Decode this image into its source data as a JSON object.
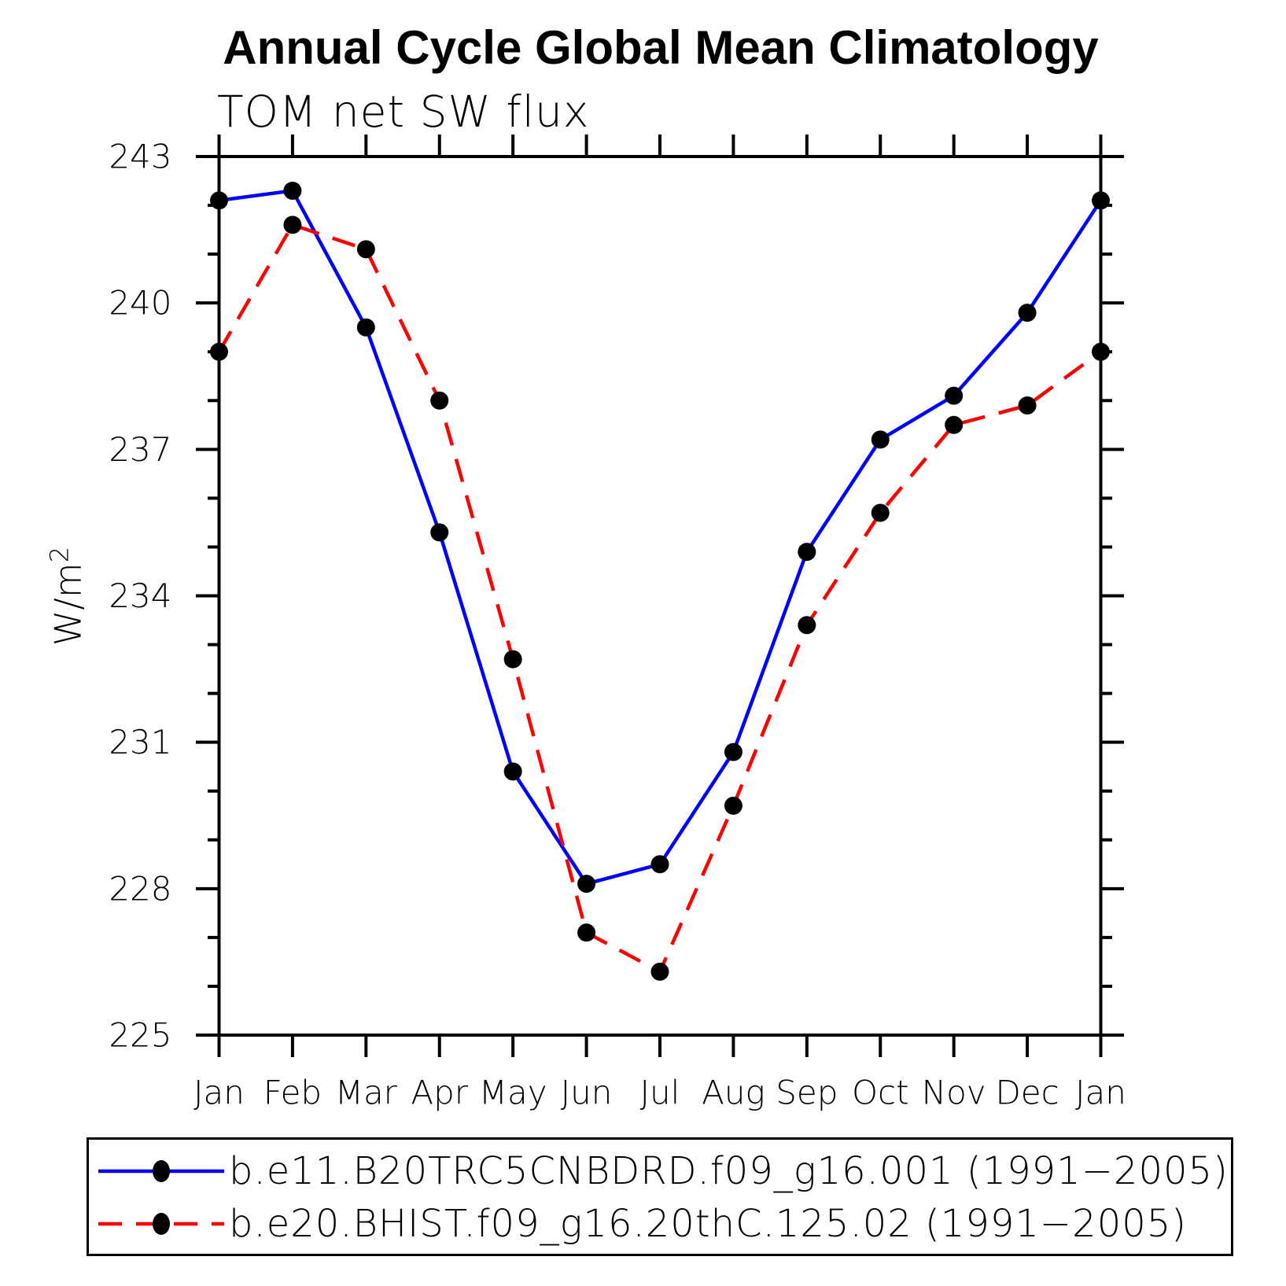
{
  "title": "Annual Cycle Global Mean Climatology",
  "subtitle": "TOM net SW flux",
  "chart_data": {
    "type": "line",
    "title": "Annual Cycle Global Mean Climatology",
    "subtitle": "TOM net SW flux",
    "ylabel": "W/m²",
    "ylabel_base": "W/m",
    "ylabel_exp": "2",
    "categories": [
      "Jan",
      "Feb",
      "Mar",
      "Apr",
      "May",
      "Jun",
      "Jul",
      "Aug",
      "Sep",
      "Oct",
      "Nov",
      "Dec",
      "Jan"
    ],
    "ylim": [
      225,
      243
    ],
    "y_major_ticks": [
      225,
      228,
      231,
      234,
      237,
      240,
      243
    ],
    "y_minor_tick_step": 1,
    "grid": false,
    "legend_position": "bottom",
    "axis_color": "#000000",
    "marker_color": "#000000",
    "series": [
      {
        "name": "b.e11.B20TRC5CNBDRD.f09_g16.001 (1991−2005)",
        "color": "#0000ff",
        "line_style": "solid",
        "marker": "filled-circle",
        "values": [
          242.1,
          242.3,
          239.5,
          235.3,
          230.4,
          228.1,
          228.5,
          230.8,
          234.9,
          237.2,
          238.1,
          239.8,
          242.1
        ]
      },
      {
        "name": "b.e20.BHIST.f09_g16.20thC.125.02 (1991−2005)",
        "color": "#ff0000",
        "line_style": "dashed",
        "marker": "filled-circle",
        "values": [
          239.0,
          241.6,
          241.1,
          238.0,
          232.7,
          227.1,
          226.3,
          229.7,
          233.4,
          235.7,
          237.5,
          237.9,
          239.0
        ]
      }
    ]
  }
}
